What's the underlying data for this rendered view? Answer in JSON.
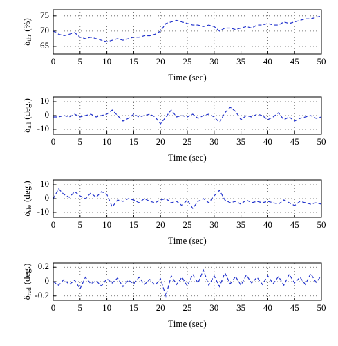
{
  "chart_data": [
    {
      "type": "line",
      "xlabel": "Time (sec)",
      "ylabel_symbol": "δ",
      "ylabel_subscript": "thr",
      "ylabel_unit": "(%)",
      "color": "#2233cc",
      "line_style": "dashed",
      "grid": true,
      "xlim": [
        0,
        50
      ],
      "xticks": [
        0,
        5,
        10,
        15,
        20,
        25,
        30,
        35,
        40,
        45,
        50
      ],
      "ylim": [
        62.5,
        77
      ],
      "yticks": [
        65,
        70,
        75
      ],
      "x": [
        0,
        1,
        2,
        3,
        4,
        5,
        6,
        7,
        8,
        9,
        10,
        11,
        12,
        13,
        14,
        15,
        16,
        17,
        18,
        19,
        20,
        21,
        22,
        23,
        24,
        25,
        26,
        27,
        28,
        29,
        30,
        31,
        32,
        33,
        34,
        35,
        36,
        37,
        38,
        39,
        40,
        41,
        42,
        43,
        44,
        45,
        46,
        47,
        48,
        49,
        50
      ],
      "values": [
        70,
        69,
        68.5,
        69,
        69.5,
        68,
        67.5,
        68,
        67.5,
        67,
        66.5,
        67,
        67.5,
        67,
        67.5,
        68,
        68,
        68.5,
        68.5,
        69,
        70,
        72.5,
        73,
        73.5,
        73,
        72.5,
        72,
        72,
        71.5,
        72,
        71.5,
        70,
        71,
        71,
        70.5,
        71,
        71.5,
        71,
        72,
        72,
        72.5,
        72,
        72,
        73,
        72.5,
        73,
        73.5,
        74,
        74,
        74.5,
        75
      ]
    },
    {
      "type": "line",
      "xlabel": "Time (sec)",
      "ylabel_symbol": "δ",
      "ylabel_subscript": "ail",
      "ylabel_unit": "(deg.)",
      "color": "#2233cc",
      "line_style": "dashed",
      "grid": true,
      "xlim": [
        0,
        50
      ],
      "xticks": [
        0,
        5,
        10,
        15,
        20,
        25,
        30,
        35,
        40,
        45,
        50
      ],
      "ylim": [
        -13.5,
        13.5
      ],
      "yticks": [
        -10,
        0,
        10
      ],
      "x": [
        0,
        1,
        2,
        3,
        4,
        5,
        6,
        7,
        8,
        9,
        10,
        11,
        12,
        13,
        14,
        15,
        16,
        17,
        18,
        19,
        20,
        21,
        22,
        23,
        24,
        25,
        26,
        27,
        28,
        29,
        30,
        31,
        32,
        33,
        34,
        35,
        36,
        37,
        38,
        39,
        40,
        41,
        42,
        43,
        44,
        45,
        46,
        47,
        48,
        49,
        50
      ],
      "values": [
        -1,
        -1,
        0,
        -1,
        1,
        -1,
        0,
        1,
        -1,
        0,
        1,
        4,
        0,
        -4,
        -2,
        1,
        -1,
        0,
        1,
        -1,
        -6,
        -1,
        4,
        -1,
        0,
        -1,
        1,
        -2,
        0,
        1,
        -1,
        -5,
        2,
        6,
        3,
        -3,
        0,
        -1,
        1,
        0,
        -3,
        -1,
        2,
        -3,
        -1,
        -4,
        -2,
        -1,
        0,
        -2,
        -1
      ]
    },
    {
      "type": "line",
      "xlabel": "Time (sec)",
      "ylabel_symbol": "δ",
      "ylabel_subscript": "ele",
      "ylabel_unit": "(deg.)",
      "color": "#2233cc",
      "line_style": "dashed",
      "grid": true,
      "xlim": [
        0,
        50
      ],
      "xticks": [
        0,
        5,
        10,
        15,
        20,
        25,
        30,
        35,
        40,
        45,
        50
      ],
      "ylim": [
        -13.5,
        13.5
      ],
      "yticks": [
        -10,
        0,
        10
      ],
      "x": [
        0,
        1,
        2,
        3,
        4,
        5,
        6,
        7,
        8,
        9,
        10,
        11,
        12,
        13,
        14,
        15,
        16,
        17,
        18,
        19,
        20,
        21,
        22,
        23,
        24,
        25,
        26,
        27,
        28,
        29,
        30,
        31,
        32,
        33,
        34,
        35,
        36,
        37,
        38,
        39,
        40,
        41,
        42,
        43,
        44,
        45,
        46,
        47,
        48,
        49,
        50
      ],
      "values": [
        0,
        7,
        3,
        1,
        5,
        2,
        0,
        4,
        1,
        5,
        3,
        -6,
        -1,
        -2,
        0,
        -1,
        -3,
        0,
        -2,
        -3,
        -1,
        0,
        -3,
        -2,
        -5,
        -1,
        -7,
        -2,
        0,
        -3,
        2,
        6,
        -1,
        -3,
        -2,
        -4,
        -1,
        -3,
        -2,
        -3,
        -2,
        -3,
        -4,
        -1,
        -3,
        -5,
        -2,
        -3,
        -4,
        -3,
        -4
      ]
    },
    {
      "type": "line",
      "xlabel": "Time (sec)",
      "ylabel_symbol": "δ",
      "ylabel_subscript": "rud",
      "ylabel_unit": "(deg.)",
      "color": "#2233cc",
      "line_style": "dashed",
      "grid": true,
      "xlim": [
        0,
        50
      ],
      "xticks": [
        0,
        5,
        10,
        15,
        20,
        25,
        30,
        35,
        40,
        45,
        50
      ],
      "ylim": [
        -0.26,
        0.26
      ],
      "yticks": [
        -0.2,
        0,
        0.2
      ],
      "x": [
        0,
        1,
        2,
        3,
        4,
        5,
        6,
        7,
        8,
        9,
        10,
        11,
        12,
        13,
        14,
        15,
        16,
        17,
        18,
        19,
        20,
        21,
        22,
        23,
        24,
        25,
        26,
        27,
        28,
        29,
        30,
        31,
        32,
        33,
        34,
        35,
        36,
        37,
        38,
        39,
        40,
        41,
        42,
        43,
        44,
        45,
        46,
        47,
        48,
        49,
        50
      ],
      "values": [
        0,
        -0.05,
        0.03,
        -0.04,
        0.02,
        -0.1,
        0.06,
        -0.03,
        0.01,
        -0.06,
        0.04,
        -0.02,
        0.05,
        -0.07,
        0.02,
        -0.03,
        0.06,
        -0.04,
        0.03,
        -0.05,
        0.04,
        -0.2,
        0.08,
        -0.04,
        0.06,
        -0.06,
        0.1,
        -0.02,
        0.16,
        -0.05,
        0.08,
        -0.07,
        0.12,
        -0.03,
        0.07,
        -0.05,
        0.09,
        -0.02,
        0.06,
        -0.04,
        0.08,
        -0.03,
        0.07,
        -0.05,
        0.1,
        -0.02,
        0.06,
        -0.04,
        0.11,
        -0.01,
        0.08
      ]
    }
  ]
}
